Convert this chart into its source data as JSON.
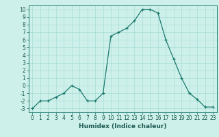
{
  "x": [
    0,
    1,
    2,
    3,
    4,
    5,
    6,
    7,
    8,
    9,
    10,
    11,
    12,
    13,
    14,
    15,
    16,
    17,
    18,
    19,
    20,
    21,
    22,
    23
  ],
  "y": [
    -3,
    -2,
    -2,
    -1.5,
    -1,
    0,
    -0.5,
    -2,
    -2,
    -1,
    6.5,
    7,
    7.5,
    8.5,
    10,
    10,
    9.5,
    6,
    3.5,
    1,
    -1,
    -1.8,
    -2.8,
    -2.8
  ],
  "line_color": "#1a7a6e",
  "marker_color": "#1a7a6e",
  "bg_color": "#cef0ea",
  "grid_color": "#a8ddd6",
  "xlabel": "Humidex (Indice chaleur)",
  "xlim": [
    -0.5,
    23.5
  ],
  "ylim": [
    -3.5,
    10.5
  ],
  "xticks": [
    0,
    1,
    2,
    3,
    4,
    5,
    6,
    7,
    8,
    9,
    10,
    11,
    12,
    13,
    14,
    15,
    16,
    17,
    18,
    19,
    20,
    21,
    22,
    23
  ],
  "yticks": [
    -3,
    -2,
    -1,
    0,
    1,
    2,
    3,
    4,
    5,
    6,
    7,
    8,
    9,
    10
  ],
  "xlabel_fontsize": 6.5,
  "tick_fontsize": 5.5
}
